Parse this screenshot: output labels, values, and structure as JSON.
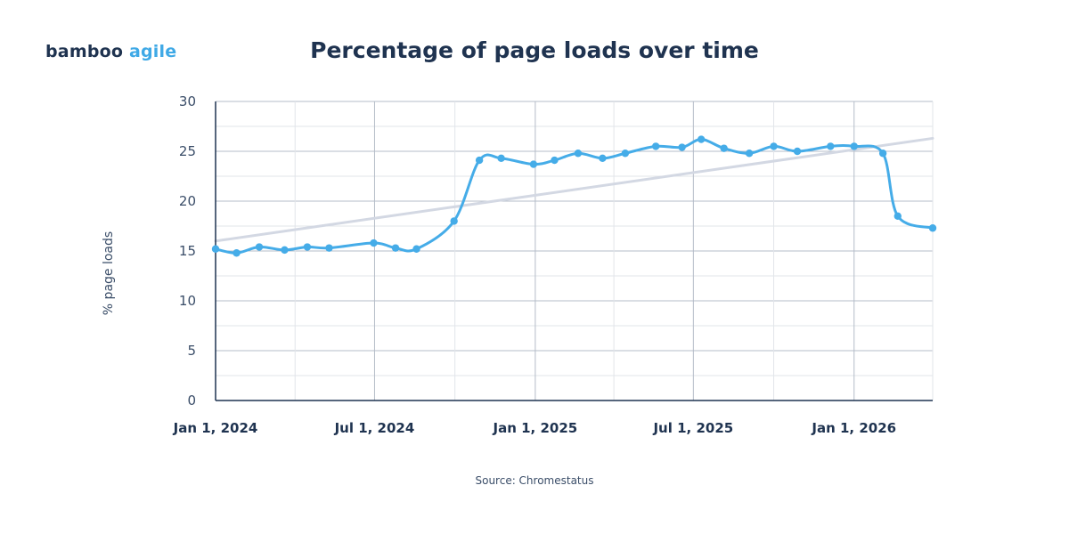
{
  "logo": {
    "part1": "bamboo",
    "part2": "agile"
  },
  "source": "Source: Chromestatus",
  "colors": {
    "line": "#45ace8",
    "trend": "#d3d8e3",
    "text": "#1f3350",
    "grid_minor": "#e2e5ea",
    "grid_major": "#b4bcc8"
  },
  "chart_data": {
    "type": "line",
    "title": "Percentage of page loads over time",
    "xlabel": "",
    "ylabel": "% page loads",
    "ylim": [
      0,
      30
    ],
    "yticks": [
      "0",
      "5",
      "10",
      "15",
      "20",
      "25",
      "30"
    ],
    "xlim": [
      "2024-01-01",
      "2026-04-01"
    ],
    "xticks": [
      "Jan 1, 2024",
      "Jul 1, 2024",
      "Jan 1, 2025",
      "Jul 1, 2025",
      "Jan 1, 2026"
    ],
    "grid": true,
    "legend": "none",
    "series": [
      {
        "x": [
          "2024-01-01",
          "2024-01-25",
          "2024-02-20",
          "2024-03-20",
          "2024-04-15",
          "2024-05-10",
          "2024-06-30",
          "2024-07-25",
          "2024-08-18",
          "2024-09-30",
          "2024-10-29",
          "2024-11-23",
          "2024-12-30",
          "2025-01-23",
          "2025-02-19",
          "2025-03-19",
          "2025-04-14",
          "2025-05-19",
          "2025-06-18",
          "2025-07-10",
          "2025-08-05",
          "2025-09-03",
          "2025-10-01",
          "2025-10-28",
          "2025-12-05",
          "2026-01-01",
          "2026-02-03",
          "2026-02-20",
          "2026-04-01"
        ],
        "values": [
          15.2,
          14.8,
          15.4,
          15.1,
          15.4,
          15.3,
          15.8,
          15.3,
          15.2,
          18.0,
          24.1,
          24.3,
          23.7,
          24.1,
          24.8,
          24.3,
          24.8,
          25.5,
          25.4,
          26.2,
          25.3,
          24.8,
          25.5,
          25.0,
          25.5,
          25.5,
          24.8,
          18.5,
          17.3
        ]
      }
    ],
    "trendline": {
      "x": [
        "2024-01-01",
        "2026-04-01"
      ],
      "values": [
        16.0,
        26.3
      ]
    }
  }
}
